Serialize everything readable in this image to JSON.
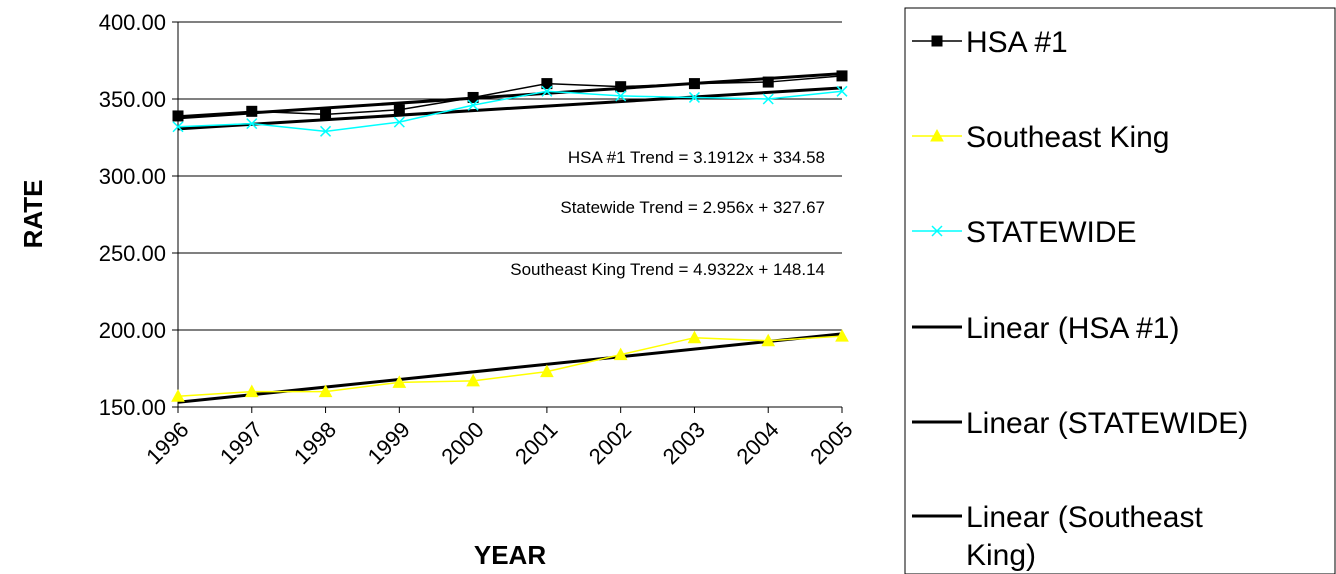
{
  "chart_data": {
    "type": "line",
    "title": "",
    "xlabel": "YEAR",
    "ylabel": "RATE",
    "ylim": [
      150,
      400
    ],
    "yticks": [
      "150.00",
      "200.00",
      "250.00",
      "300.00",
      "350.00",
      "400.00"
    ],
    "categories": [
      "1996",
      "1997",
      "1998",
      "1999",
      "2000",
      "2001",
      "2002",
      "2003",
      "2004",
      "2005"
    ],
    "grid": true,
    "legend_position": "right",
    "series": [
      {
        "name": "HSA #1",
        "color": "#000000",
        "marker": "square",
        "values": [
          339,
          342,
          340,
          343,
          351,
          360,
          358,
          360,
          361,
          365
        ]
      },
      {
        "name": "Southeast King",
        "color": "#ffff00",
        "marker": "triangle",
        "values": [
          157,
          160,
          160,
          166,
          167,
          173,
          184,
          195,
          193,
          196
        ]
      },
      {
        "name": "STATEWIDE",
        "color": "#00ffff",
        "marker": "x",
        "values": [
          332,
          334,
          329,
          335,
          346,
          355,
          352,
          351,
          350,
          355
        ]
      }
    ],
    "trendlines": [
      {
        "name": "Linear (HSA #1)",
        "color": "#000000",
        "slope": 3.1912,
        "intercept": 334.58
      },
      {
        "name": "Linear (STATEWIDE)",
        "color": "#000000",
        "slope": 2.956,
        "intercept": 327.67
      },
      {
        "name": "Linear (Southeast King)",
        "color": "#000000",
        "slope": 4.9322,
        "intercept": 148.14
      }
    ],
    "annotations": [
      "HSA #1 Trend = 3.1912x + 334.58",
      "Statewide Trend = 2.956x + 327.67",
      "Southeast King Trend = 4.9322x + 148.14"
    ],
    "legend": [
      "HSA #1",
      "Southeast King",
      "STATEWIDE",
      "Linear (HSA #1)",
      "Linear (STATEWIDE)",
      "Linear (Southeast King)"
    ]
  }
}
